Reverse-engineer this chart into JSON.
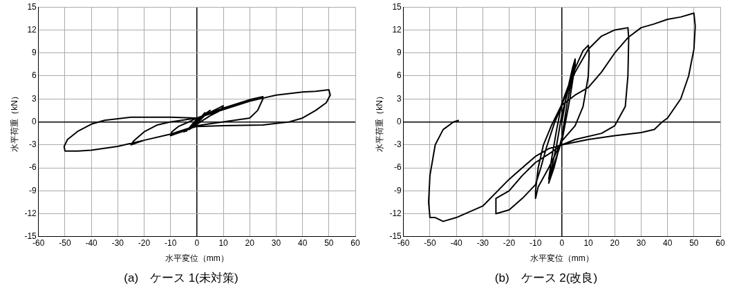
{
  "chart_data": [
    {
      "type": "line",
      "title": "(a)　ケース 1(未対策)",
      "xlabel": "水平変位（mm）",
      "ylabel": "水平荷重（kN）",
      "xlim": [
        -60,
        60
      ],
      "xticks": [
        -60,
        -50,
        -40,
        -30,
        -20,
        -10,
        0,
        10,
        20,
        30,
        40,
        50,
        60
      ],
      "ylim": [
        -15,
        15
      ],
      "yticks": [
        -15,
        -12,
        -9,
        -6,
        -3,
        0,
        3,
        6,
        9,
        12,
        15
      ],
      "grid": true,
      "legend": false,
      "marker": "none",
      "line_style": "solid",
      "series": [
        {
          "color": "#000000",
          "x": [
            0,
            2,
            3,
            -2,
            -3,
            0,
            5,
            4,
            0,
            -5,
            -4,
            0,
            10,
            9,
            5,
            0,
            -5,
            -10,
            -9.5,
            -7,
            -3,
            0,
            10,
            20,
            25,
            25,
            23,
            20,
            10,
            0,
            -10,
            -20,
            -25,
            -24,
            -20,
            -15,
            -10,
            0,
            10,
            20,
            25,
            30,
            40,
            45,
            50,
            50.5,
            49,
            45,
            40,
            35,
            25,
            10,
            0,
            -10,
            -20,
            -30,
            -40,
            -45,
            -50,
            -50.3,
            -49,
            -45,
            -40,
            -35,
            -25,
            -10,
            0
          ],
          "values": [
            0,
            0.8,
            1.2,
            -0.8,
            -1,
            0.3,
            1.5,
            1.2,
            -0.2,
            -1.3,
            -1.2,
            0.4,
            2.1,
            1.5,
            0.8,
            -0.3,
            -1.2,
            -1.8,
            -1.3,
            -0.6,
            0,
            0.5,
            1.8,
            2.9,
            3.3,
            3,
            1.5,
            0.5,
            0,
            -0.5,
            -1.6,
            -2.4,
            -3,
            -2.5,
            -1.3,
            -0.4,
            0,
            0.5,
            1.6,
            2.7,
            3.1,
            3.5,
            3.9,
            4,
            4.2,
            3.5,
            2.5,
            1.5,
            0.5,
            0,
            -0.4,
            -0.5,
            -0.6,
            -1.6,
            -2.4,
            -3.2,
            -3.7,
            -3.8,
            -3.8,
            -3.2,
            -2.3,
            -1.2,
            -0.3,
            0.2,
            0.6,
            0.6,
            0.5
          ]
        }
      ]
    },
    {
      "type": "line",
      "title": "(b)　ケース 2(改良)",
      "xlabel": "水平変位（mm）",
      "ylabel": "水平荷重（kN）",
      "xlim": [
        -60,
        60
      ],
      "xticks": [
        -60,
        -50,
        -40,
        -30,
        -20,
        -10,
        0,
        10,
        20,
        30,
        40,
        50,
        60
      ],
      "ylim": [
        -15,
        15
      ],
      "yticks": [
        -15,
        -12,
        -9,
        -6,
        -3,
        0,
        3,
        6,
        9,
        12,
        15
      ],
      "grid": true,
      "legend": false,
      "marker": "none",
      "line_style": "solid",
      "series": [
        {
          "color": "#000000",
          "x": [
            0,
            2,
            4,
            5,
            4.5,
            2,
            0,
            -3,
            -5,
            -4.5,
            -2,
            0,
            3,
            5,
            5,
            3,
            0,
            -5,
            -4,
            -2,
            0,
            5,
            8,
            10,
            10.3,
            10,
            8,
            5,
            0,
            -5,
            -9,
            -10,
            -10,
            -9,
            -7,
            -4,
            0,
            5,
            10,
            15,
            20,
            25,
            25.3,
            25,
            24,
            20,
            15,
            5,
            0,
            -5,
            -10,
            -15,
            -20,
            -25,
            -25,
            -20,
            -15,
            -10,
            -8,
            -6,
            -3,
            0,
            5,
            10,
            15,
            20,
            25,
            30,
            35,
            40,
            45,
            50,
            50.5,
            50,
            48,
            45,
            40,
            38,
            35,
            30,
            20,
            10,
            0,
            -5,
            -10,
            -20,
            -30,
            -40,
            -45,
            -48,
            -50,
            -50.5,
            -50,
            -48,
            -45,
            -41,
            -39
          ],
          "values": [
            0,
            4,
            7,
            8.2,
            7,
            2.5,
            -2,
            -6,
            -8,
            -7,
            -3,
            1,
            5,
            8.2,
            7.5,
            3,
            -2.5,
            -7.5,
            -5,
            -1,
            2.5,
            7,
            9.3,
            10,
            9,
            6,
            2,
            -0.5,
            -2.5,
            -6,
            -8.5,
            -10,
            -9,
            -6,
            -3,
            -0.5,
            2.3,
            6.5,
            9.5,
            11.2,
            12,
            12.3,
            11,
            6,
            2,
            -0.5,
            -1.5,
            -2.3,
            -3,
            -4.2,
            -5.3,
            -7,
            -9,
            -10,
            -12,
            -11.5,
            -10,
            -8.2,
            -6,
            -3.5,
            -0.3,
            2.2,
            3.5,
            4.5,
            6.5,
            9,
            11,
            12.3,
            12.8,
            13.4,
            13.7,
            14.2,
            12.5,
            9.5,
            6,
            3,
            0.5,
            0,
            -1,
            -1.4,
            -1.8,
            -2.3,
            -3,
            -3.5,
            -4.5,
            -7.5,
            -11,
            -12.5,
            -13,
            -12.5,
            -12.5,
            -10.5,
            -7,
            -3,
            -1,
            0,
            0.2
          ]
        }
      ]
    }
  ]
}
